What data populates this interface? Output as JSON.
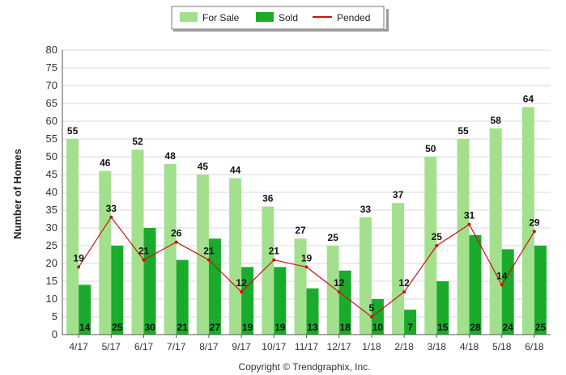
{
  "chart_data": {
    "type": "bar",
    "categories": [
      "4/17",
      "5/17",
      "6/17",
      "7/17",
      "8/17",
      "9/17",
      "10/17",
      "11/17",
      "12/17",
      "1/18",
      "2/18",
      "3/18",
      "4/18",
      "5/18",
      "6/18"
    ],
    "series": [
      {
        "name": "For Sale",
        "kind": "bar",
        "color": "#a3e08e",
        "values": [
          55,
          46,
          52,
          48,
          45,
          44,
          36,
          27,
          25,
          33,
          37,
          50,
          55,
          58,
          64
        ]
      },
      {
        "name": "Sold",
        "kind": "bar",
        "color": "#1bab2c",
        "values": [
          14,
          25,
          30,
          21,
          27,
          19,
          19,
          13,
          18,
          10,
          7,
          15,
          28,
          24,
          25
        ]
      },
      {
        "name": "Pended",
        "kind": "line",
        "color": "#cc1111",
        "values": [
          19,
          33,
          21,
          26,
          21,
          12,
          21,
          19,
          12,
          5,
          12,
          25,
          31,
          14,
          29
        ]
      }
    ],
    "title": "",
    "xlabel": "",
    "ylabel": "Number of Homes",
    "ylim": [
      0,
      80
    ],
    "yticks": [
      0,
      5,
      10,
      15,
      20,
      25,
      30,
      35,
      40,
      45,
      50,
      55,
      60,
      65,
      70,
      75,
      80
    ],
    "grid": true,
    "legend_position": "top-center"
  },
  "footer": {
    "copyright": "Copyright © Trendgraphix, Inc."
  }
}
